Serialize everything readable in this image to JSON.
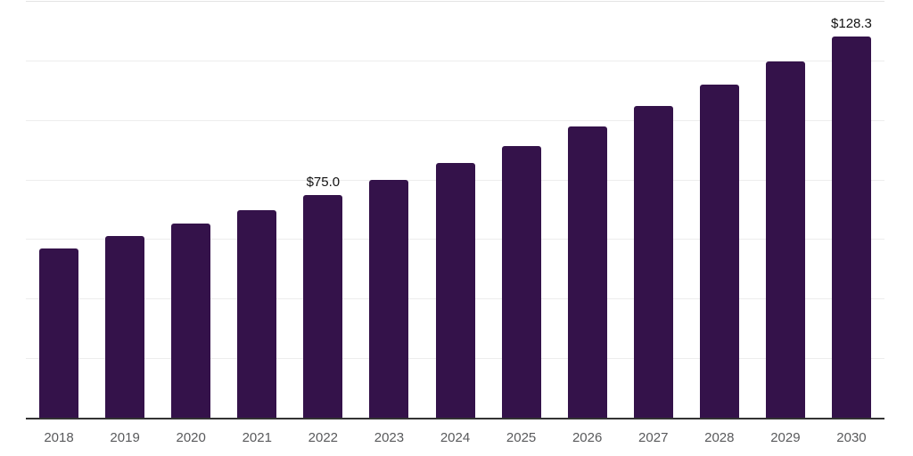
{
  "chart_data": {
    "type": "bar",
    "title": "",
    "xlabel": "",
    "ylabel": "",
    "categories": [
      "2018",
      "2019",
      "2020",
      "2021",
      "2022",
      "2023",
      "2024",
      "2025",
      "2026",
      "2027",
      "2028",
      "2029",
      "2030"
    ],
    "series": [
      {
        "name": "value",
        "values": [
          57.3,
          61.3,
          65.6,
          70.1,
          75.0,
          80.2,
          85.8,
          91.7,
          98.1,
          104.9,
          112.2,
          120.0,
          128.3
        ]
      }
    ],
    "labeled_points": [
      {
        "category": "2022",
        "label": "$75.0"
      },
      {
        "category": "2030",
        "label": "$128.3"
      }
    ],
    "ylim": [
      0,
      140
    ],
    "gridline_step": 20,
    "grid": true,
    "legend": false,
    "y_tick_labels_visible": false,
    "colors": {
      "bar": "#34124A",
      "axis": "#333333",
      "gridline": "#ededed",
      "tick_label": "#595a5c",
      "data_label": "#111111",
      "background": "#ffffff"
    }
  }
}
